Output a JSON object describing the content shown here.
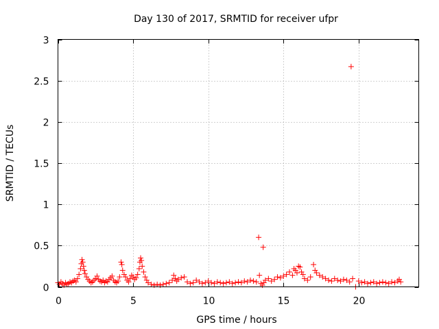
{
  "chart_data": {
    "type": "scatter",
    "title": "Day 130 of 2017, SRMTID for receiver ufpr",
    "xlabel": "GPS time / hours",
    "ylabel": "SRMTID / TECUs",
    "xlim": [
      0,
      24
    ],
    "ylim": [
      0,
      3
    ],
    "xticks": [
      0,
      5,
      10,
      15,
      20
    ],
    "yticks": [
      0,
      0.5,
      1,
      1.5,
      2,
      2.5,
      3
    ],
    "xtick_labels": [
      "0",
      "5",
      "10",
      "15",
      "20"
    ],
    "ytick_labels": [
      "0",
      "0.5",
      "1",
      "1.5",
      "2",
      "2.5",
      "3"
    ],
    "grid": true,
    "marker": "+",
    "series": [
      {
        "name": "SRMTID",
        "color": "#ff0000",
        "points": [
          [
            0.0,
            0.05
          ],
          [
            0.1,
            0.03
          ],
          [
            0.2,
            0.06
          ],
          [
            0.3,
            0.04
          ],
          [
            0.4,
            0.02
          ],
          [
            0.5,
            0.05
          ],
          [
            0.6,
            0.03
          ],
          [
            0.7,
            0.04
          ],
          [
            0.8,
            0.06
          ],
          [
            0.9,
            0.05
          ],
          [
            1.0,
            0.07
          ],
          [
            1.1,
            0.08
          ],
          [
            1.2,
            0.06
          ],
          [
            1.3,
            0.1
          ],
          [
            1.4,
            0.15
          ],
          [
            1.5,
            0.22
          ],
          [
            1.55,
            0.28
          ],
          [
            1.6,
            0.33
          ],
          [
            1.65,
            0.3
          ],
          [
            1.7,
            0.25
          ],
          [
            1.75,
            0.2
          ],
          [
            1.8,
            0.16
          ],
          [
            1.9,
            0.12
          ],
          [
            2.0,
            0.09
          ],
          [
            2.1,
            0.07
          ],
          [
            2.2,
            0.05
          ],
          [
            2.3,
            0.06
          ],
          [
            2.4,
            0.08
          ],
          [
            2.5,
            0.1
          ],
          [
            2.6,
            0.13
          ],
          [
            2.7,
            0.09
          ],
          [
            2.8,
            0.07
          ],
          [
            2.9,
            0.06
          ],
          [
            3.0,
            0.08
          ],
          [
            3.1,
            0.05
          ],
          [
            3.2,
            0.07
          ],
          [
            3.3,
            0.06
          ],
          [
            3.4,
            0.09
          ],
          [
            3.5,
            0.11
          ],
          [
            3.6,
            0.13
          ],
          [
            3.7,
            0.08
          ],
          [
            3.8,
            0.06
          ],
          [
            3.9,
            0.05
          ],
          [
            4.0,
            0.07
          ],
          [
            4.1,
            0.12
          ],
          [
            4.2,
            0.3
          ],
          [
            4.25,
            0.27
          ],
          [
            4.3,
            0.2
          ],
          [
            4.4,
            0.15
          ],
          [
            4.5,
            0.12
          ],
          [
            4.6,
            0.08
          ],
          [
            4.7,
            0.06
          ],
          [
            4.8,
            0.1
          ],
          [
            4.9,
            0.14
          ],
          [
            5.0,
            0.12
          ],
          [
            5.1,
            0.09
          ],
          [
            5.2,
            0.11
          ],
          [
            5.3,
            0.15
          ],
          [
            5.4,
            0.22
          ],
          [
            5.45,
            0.3
          ],
          [
            5.5,
            0.35
          ],
          [
            5.55,
            0.32
          ],
          [
            5.6,
            0.25
          ],
          [
            5.7,
            0.18
          ],
          [
            5.8,
            0.12
          ],
          [
            5.9,
            0.08
          ],
          [
            6.0,
            0.05
          ],
          [
            6.2,
            0.03
          ],
          [
            6.4,
            0.02
          ],
          [
            6.6,
            0.03
          ],
          [
            6.8,
            0.02
          ],
          [
            7.0,
            0.03
          ],
          [
            7.2,
            0.04
          ],
          [
            7.4,
            0.05
          ],
          [
            7.6,
            0.08
          ],
          [
            7.7,
            0.14
          ],
          [
            7.8,
            0.1
          ],
          [
            7.9,
            0.07
          ],
          [
            8.0,
            0.09
          ],
          [
            8.2,
            0.11
          ],
          [
            8.4,
            0.12
          ],
          [
            8.6,
            0.06
          ],
          [
            8.8,
            0.04
          ],
          [
            9.0,
            0.05
          ],
          [
            9.2,
            0.08
          ],
          [
            9.4,
            0.06
          ],
          [
            9.6,
            0.04
          ],
          [
            9.8,
            0.05
          ],
          [
            10.0,
            0.07
          ],
          [
            10.2,
            0.05
          ],
          [
            10.4,
            0.04
          ],
          [
            10.6,
            0.06
          ],
          [
            10.8,
            0.05
          ],
          [
            11.0,
            0.04
          ],
          [
            11.2,
            0.05
          ],
          [
            11.4,
            0.06
          ],
          [
            11.6,
            0.04
          ],
          [
            11.8,
            0.05
          ],
          [
            12.0,
            0.06
          ],
          [
            12.2,
            0.05
          ],
          [
            12.4,
            0.07
          ],
          [
            12.6,
            0.06
          ],
          [
            12.8,
            0.08
          ],
          [
            13.0,
            0.07
          ],
          [
            13.2,
            0.06
          ],
          [
            13.35,
            0.6
          ],
          [
            13.4,
            0.14
          ],
          [
            13.5,
            0.04
          ],
          [
            13.6,
            0.02
          ],
          [
            13.65,
            0.48
          ],
          [
            13.7,
            0.05
          ],
          [
            13.8,
            0.08
          ],
          [
            14.0,
            0.1
          ],
          [
            14.2,
            0.07
          ],
          [
            14.4,
            0.09
          ],
          [
            14.6,
            0.12
          ],
          [
            14.8,
            0.11
          ],
          [
            15.0,
            0.13
          ],
          [
            15.2,
            0.15
          ],
          [
            15.4,
            0.18
          ],
          [
            15.6,
            0.14
          ],
          [
            15.7,
            0.22
          ],
          [
            15.8,
            0.2
          ],
          [
            15.9,
            0.17
          ],
          [
            16.0,
            0.25
          ],
          [
            16.1,
            0.24
          ],
          [
            16.2,
            0.18
          ],
          [
            16.3,
            0.15
          ],
          [
            16.4,
            0.1
          ],
          [
            16.6,
            0.08
          ],
          [
            16.8,
            0.12
          ],
          [
            17.0,
            0.27
          ],
          [
            17.1,
            0.2
          ],
          [
            17.2,
            0.17
          ],
          [
            17.4,
            0.14
          ],
          [
            17.6,
            0.12
          ],
          [
            17.8,
            0.1
          ],
          [
            18.0,
            0.08
          ],
          [
            18.2,
            0.07
          ],
          [
            18.4,
            0.1
          ],
          [
            18.6,
            0.08
          ],
          [
            18.8,
            0.07
          ],
          [
            19.0,
            0.09
          ],
          [
            19.2,
            0.08
          ],
          [
            19.4,
            0.06
          ],
          [
            19.5,
            2.67
          ],
          [
            19.6,
            0.1
          ],
          [
            19.8,
            0.0
          ],
          [
            20.0,
            0.07
          ],
          [
            20.2,
            0.05
          ],
          [
            20.4,
            0.06
          ],
          [
            20.6,
            0.04
          ],
          [
            20.8,
            0.05
          ],
          [
            21.0,
            0.06
          ],
          [
            21.2,
            0.04
          ],
          [
            21.4,
            0.05
          ],
          [
            21.6,
            0.06
          ],
          [
            21.8,
            0.05
          ],
          [
            22.0,
            0.04
          ],
          [
            22.2,
            0.06
          ],
          [
            22.4,
            0.05
          ],
          [
            22.6,
            0.07
          ],
          [
            22.7,
            0.09
          ],
          [
            22.8,
            0.06
          ]
        ]
      }
    ]
  }
}
